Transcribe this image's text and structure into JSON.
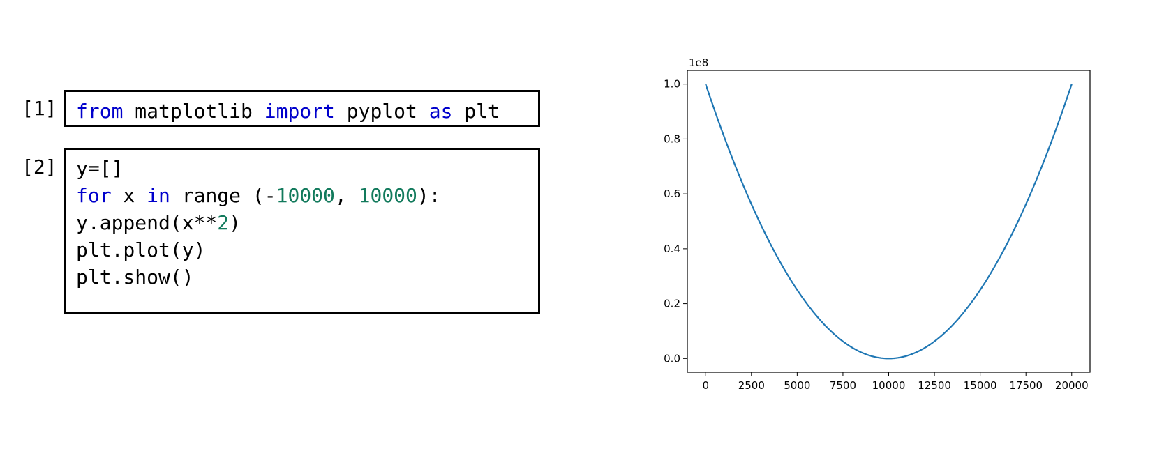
{
  "cells": [
    {
      "prompt": "[1]",
      "lines": [
        [
          {
            "t": "from",
            "c": "kw"
          },
          {
            "t": " matplotlib "
          },
          {
            "t": "import",
            "c": "kw"
          },
          {
            "t": " pyplot "
          },
          {
            "t": "as",
            "c": "kw"
          },
          {
            "t": " plt"
          }
        ]
      ]
    },
    {
      "prompt": "[2]",
      "lines": [
        [
          {
            "t": "y=[]"
          }
        ],
        [
          {
            "t": "for",
            "c": "kw"
          },
          {
            "t": " x "
          },
          {
            "t": "in",
            "c": "kw"
          },
          {
            "t": " range (-"
          },
          {
            "t": "10000",
            "c": "num"
          },
          {
            "t": ", "
          },
          {
            "t": "10000",
            "c": "num"
          },
          {
            "t": "):"
          }
        ],
        [
          {
            "t": "y.append(x**"
          },
          {
            "t": "2",
            "c": "num"
          },
          {
            "t": ")"
          }
        ],
        [
          {
            "t": "plt.plot(y)"
          }
        ],
        [
          {
            "t": "plt.show()"
          }
        ]
      ]
    }
  ],
  "colors": {
    "keyword": "#0000cc",
    "number": "#127a5c",
    "line": "#1f77b4"
  },
  "chart_data": {
    "type": "line",
    "title": "",
    "xlabel": "",
    "ylabel": "",
    "offset_label": "1e8",
    "x_range": [
      0,
      19999
    ],
    "function": "y = (x - 10000)^2",
    "xlim": [
      -1000,
      21000
    ],
    "ylim": [
      -0.05,
      1.05
    ],
    "y_scale": 100000000,
    "xticks": [
      0,
      2500,
      5000,
      7500,
      10000,
      12500,
      15000,
      17500,
      20000
    ],
    "xtick_labels": [
      "0",
      "2500",
      "5000",
      "7500",
      "10000",
      "12500",
      "15000",
      "17500",
      "20000"
    ],
    "yticks": [
      0.0,
      0.2,
      0.4,
      0.6,
      0.8,
      1.0
    ],
    "ytick_labels": [
      "0.0",
      "0.2",
      "0.4",
      "0.6",
      "0.8",
      "1.0"
    ],
    "grid": false,
    "legend": "none"
  }
}
